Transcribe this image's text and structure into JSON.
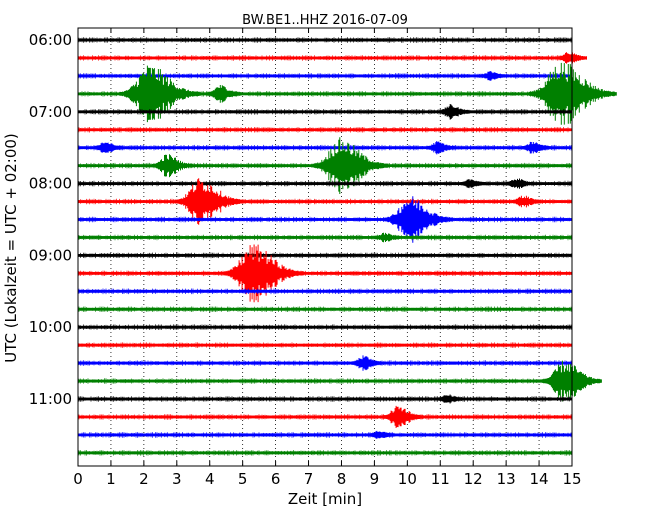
{
  "chart_data": {
    "type": "line",
    "title": "BW.BE1..HHZ 2016-07-09",
    "xlabel": "Zeit  [min]",
    "ylabel": "UTC (Lokalzeit = UTC + 02:00)",
    "xlim": [
      0,
      15
    ],
    "x_ticks": [
      "0",
      "1",
      "2",
      "3",
      "4",
      "5",
      "6",
      "7",
      "8",
      "9",
      "10",
      "11",
      "12",
      "13",
      "14",
      "15"
    ],
    "y_ticks": [
      "06:00",
      "07:00",
      "08:00",
      "09:00",
      "10:00",
      "11:00"
    ],
    "grid": "vertical dotted",
    "trace_colors": [
      "#000000",
      "#ff0000",
      "#0000ff",
      "#008000"
    ],
    "traces": [
      {
        "start": "06:00",
        "color": "#000000",
        "events": []
      },
      {
        "start": "06:15",
        "color": "#ff0000",
        "events": [
          {
            "t": 14.9,
            "amp": 0.3
          }
        ]
      },
      {
        "start": "06:30",
        "color": "#0000ff",
        "events": [
          {
            "t": 12.5,
            "amp": 0.2
          }
        ]
      },
      {
        "start": "06:45",
        "color": "#008000",
        "events": [
          {
            "t": 2.15,
            "amp": 1.6
          },
          {
            "t": 4.3,
            "amp": 0.45
          },
          {
            "t": 14.65,
            "amp": 1.8
          }
        ]
      },
      {
        "start": "07:00",
        "color": "#000000",
        "events": [
          {
            "t": 11.3,
            "amp": 0.35
          }
        ]
      },
      {
        "start": "07:15",
        "color": "#ff0000",
        "events": []
      },
      {
        "start": "07:30",
        "color": "#0000ff",
        "events": [
          {
            "t": 0.8,
            "amp": 0.3
          },
          {
            "t": 10.9,
            "amp": 0.3
          },
          {
            "t": 13.8,
            "amp": 0.3
          }
        ]
      },
      {
        "start": "07:45",
        "color": "#008000",
        "events": [
          {
            "t": 2.7,
            "amp": 0.6
          },
          {
            "t": 7.95,
            "amp": 1.5
          }
        ]
      },
      {
        "start": "08:00",
        "color": "#000000",
        "events": [
          {
            "t": 11.9,
            "amp": 0.2
          },
          {
            "t": 13.3,
            "amp": 0.25
          }
        ]
      },
      {
        "start": "08:15",
        "color": "#ff0000",
        "events": [
          {
            "t": 3.7,
            "amp": 1.3
          },
          {
            "t": 13.5,
            "amp": 0.3
          }
        ]
      },
      {
        "start": "08:30",
        "color": "#0000ff",
        "events": [
          {
            "t": 10.05,
            "amp": 1.3
          }
        ]
      },
      {
        "start": "08:45",
        "color": "#008000",
        "events": [
          {
            "t": 9.3,
            "amp": 0.2
          }
        ]
      },
      {
        "start": "09:00",
        "color": "#000000",
        "events": []
      },
      {
        "start": "09:15",
        "color": "#ff0000",
        "events": [
          {
            "t": 5.3,
            "amp": 1.6
          }
        ]
      },
      {
        "start": "09:30",
        "color": "#0000ff",
        "events": []
      },
      {
        "start": "09:45",
        "color": "#008000",
        "events": []
      },
      {
        "start": "10:00",
        "color": "#000000",
        "events": []
      },
      {
        "start": "10:15",
        "color": "#ff0000",
        "events": []
      },
      {
        "start": "10:30",
        "color": "#0000ff",
        "events": [
          {
            "t": 8.65,
            "amp": 0.35
          }
        ]
      },
      {
        "start": "10:45",
        "color": "#008000",
        "events": [
          {
            "t": 14.75,
            "amp": 1.1
          }
        ]
      },
      {
        "start": "11:00",
        "color": "#000000",
        "events": [
          {
            "t": 11.2,
            "amp": 0.2
          }
        ]
      },
      {
        "start": "11:15",
        "color": "#ff0000",
        "events": [
          {
            "t": 9.7,
            "amp": 0.6
          }
        ]
      },
      {
        "start": "11:30",
        "color": "#0000ff",
        "events": [
          {
            "t": 9.1,
            "amp": 0.2
          }
        ]
      },
      {
        "start": "11:45",
        "color": "#008000",
        "events": []
      }
    ]
  }
}
